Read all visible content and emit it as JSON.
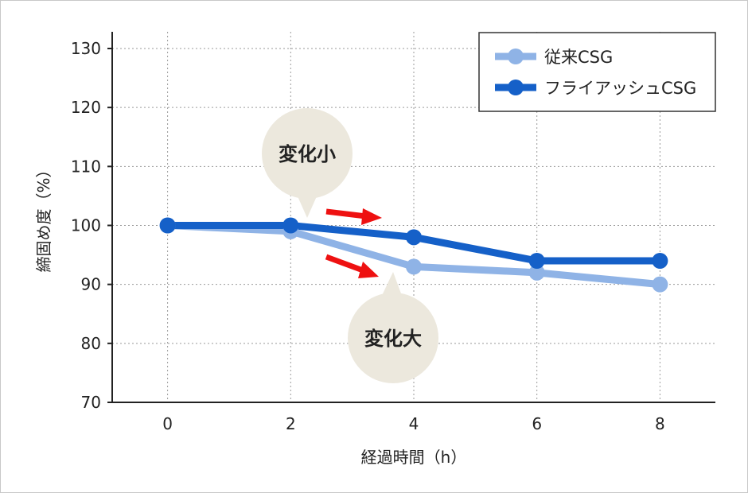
{
  "chart_data": {
    "type": "line",
    "xlabel": "経過時間（h）",
    "ylabel": "締固め度（%）",
    "xlim": [
      -0.9,
      8.9
    ],
    "ylim": [
      70,
      130
    ],
    "x_ticks": [
      "0",
      "2",
      "4",
      "6",
      "8"
    ],
    "y_ticks": [
      "70",
      "80",
      "90",
      "100",
      "110",
      "120",
      "130"
    ],
    "grid": true,
    "legend_position": "top-right",
    "series": [
      {
        "name": "従来CSG",
        "color": "#8fb3e6",
        "x": [
          0,
          2,
          4,
          6,
          8
        ],
        "y": [
          100,
          99,
          93,
          92,
          90
        ]
      },
      {
        "name": "フライアッシュCSG",
        "color": "#1560c8",
        "x": [
          0,
          2,
          4,
          6,
          8
        ],
        "y": [
          100,
          100,
          98,
          94,
          94
        ]
      }
    ],
    "annotations": [
      {
        "text": "変化小",
        "style": "bubble",
        "points_to": "upper"
      },
      {
        "text": "変化大",
        "style": "bubble",
        "points_to": "lower"
      }
    ],
    "arrow_color": "#ee1111",
    "bubble_color": "#ece8dd"
  }
}
